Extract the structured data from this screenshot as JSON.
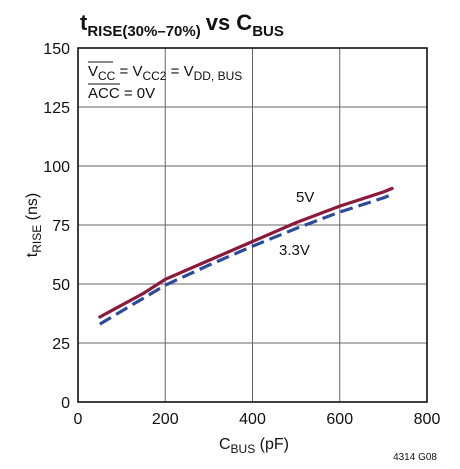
{
  "chart_data": {
    "type": "line",
    "title": {
      "main": "t",
      "main_sub": "RISE(30%–70%)",
      "vs": "vs C",
      "vs_sub": "BUS"
    },
    "xlabel": {
      "main": "C",
      "sub": "BUS",
      "rest": " (pF)"
    },
    "ylabel": {
      "main": "t",
      "sub": "RISE",
      "rest": " (ns)"
    },
    "xlim": [
      0,
      800
    ],
    "ylim": [
      0,
      150
    ],
    "x_ticks": [
      0,
      200,
      400,
      600,
      800
    ],
    "y_ticks": [
      0,
      25,
      50,
      75,
      100,
      125,
      150
    ],
    "x_tick_labels": [
      "0",
      "200",
      "400",
      "600",
      "800"
    ],
    "y_tick_labels": [
      "0",
      "25",
      "50",
      "75",
      "100",
      "125",
      "150"
    ],
    "grid": true,
    "series": [
      {
        "name": "5V",
        "color": "#8b1a3a",
        "style": "solid",
        "x": [
          50,
          100,
          150,
          200,
          300,
          400,
          500,
          600,
          700,
          720
        ],
        "y": [
          36,
          41,
          46,
          52,
          60,
          68,
          76,
          83,
          89,
          90.5
        ]
      },
      {
        "name": "3.3V",
        "color": "#2e4a9a",
        "style": "dashed",
        "x": [
          50,
          100,
          150,
          200,
          300,
          400,
          500,
          600,
          700,
          720
        ],
        "y": [
          33,
          38.5,
          44,
          49.5,
          58,
          66,
          73.5,
          80.5,
          86.5,
          88
        ]
      }
    ],
    "annotations": {
      "cond1": {
        "a": "V",
        "a_sub": "CC",
        "eq1": " = V",
        "b_sub": "CC2",
        "eq2": " = V",
        "c_sub": "DD, BUS"
      },
      "cond2": {
        "text": "ACC",
        "rest": " = 0V"
      },
      "label_5v": "5V",
      "label_33v": "3.3V"
    },
    "figure_code": "4314 G08"
  }
}
